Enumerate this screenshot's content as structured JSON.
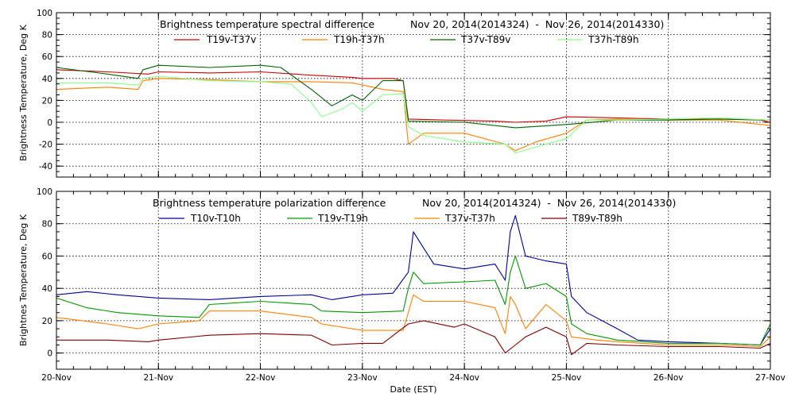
{
  "chart_data": [
    {
      "type": "line",
      "title": "Brightness temperature spectral difference",
      "date_range": "Nov 20, 2014(2014324)  -  Nov 26, 2014(2014330)",
      "ylabel": "Brightness Temperature, Deg K",
      "xlabel": "",
      "ylim": [
        -50,
        100
      ],
      "xlim": [
        0,
        7
      ],
      "yticks": [
        -40,
        -20,
        0,
        20,
        40,
        60,
        80,
        100
      ],
      "grid": true,
      "legend_position": "top",
      "series": [
        {
          "name": "T19v-T37v",
          "color": "#cc0000",
          "points": [
            [
              0,
              48
            ],
            [
              0.5,
              46
            ],
            [
              0.9,
              44
            ],
            [
              1.0,
              46
            ],
            [
              1.5,
              45
            ],
            [
              2.0,
              46
            ],
            [
              2.5,
              43
            ],
            [
              2.9,
              41
            ],
            [
              3.0,
              40
            ],
            [
              3.3,
              40
            ],
            [
              3.4,
              38
            ],
            [
              3.45,
              3
            ],
            [
              3.8,
              2
            ],
            [
              4.3,
              1
            ],
            [
              4.5,
              0
            ],
            [
              4.8,
              1
            ],
            [
              5.0,
              5
            ],
            [
              5.5,
              4
            ],
            [
              6.0,
              3
            ],
            [
              6.5,
              3
            ],
            [
              6.9,
              2
            ],
            [
              7.0,
              0
            ]
          ]
        },
        {
          "name": "T19h-T37h",
          "color": "#ff8000",
          "points": [
            [
              0,
              30
            ],
            [
              0.5,
              32
            ],
            [
              0.8,
              30
            ],
            [
              0.85,
              38
            ],
            [
              1.0,
              40
            ],
            [
              1.5,
              39
            ],
            [
              2.0,
              37
            ],
            [
              2.5,
              37
            ],
            [
              2.9,
              36
            ],
            [
              3.2,
              30
            ],
            [
              3.4,
              28
            ],
            [
              3.45,
              -20
            ],
            [
              3.6,
              -10
            ],
            [
              4.0,
              -10
            ],
            [
              4.4,
              -20
            ],
            [
              4.5,
              -26
            ],
            [
              4.7,
              -18
            ],
            [
              5.0,
              -10
            ],
            [
              5.2,
              2
            ],
            [
              5.5,
              3
            ],
            [
              6.0,
              2
            ],
            [
              6.5,
              2
            ],
            [
              7.0,
              -3
            ]
          ]
        },
        {
          "name": "T37v-T89v",
          "color": "#006400",
          "points": [
            [
              0,
              50
            ],
            [
              0.5,
              44
            ],
            [
              0.8,
              40
            ],
            [
              0.85,
              48
            ],
            [
              1.0,
              52
            ],
            [
              1.5,
              50
            ],
            [
              2.0,
              52
            ],
            [
              2.2,
              50
            ],
            [
              2.5,
              30
            ],
            [
              2.7,
              15
            ],
            [
              2.9,
              25
            ],
            [
              3.0,
              20
            ],
            [
              3.2,
              38
            ],
            [
              3.4,
              38
            ],
            [
              3.45,
              1
            ],
            [
              4.0,
              0
            ],
            [
              4.5,
              -5
            ],
            [
              5.0,
              -2
            ],
            [
              5.5,
              2
            ],
            [
              6.0,
              2
            ],
            [
              6.5,
              3
            ],
            [
              7.0,
              2
            ]
          ]
        },
        {
          "name": "T37h-T89h",
          "color": "#88ff88",
          "points": [
            [
              0,
              36
            ],
            [
              0.5,
              36
            ],
            [
              0.8,
              34
            ],
            [
              0.85,
              40
            ],
            [
              1.0,
              42
            ],
            [
              1.5,
              38
            ],
            [
              2.0,
              37
            ],
            [
              2.3,
              35
            ],
            [
              2.5,
              18
            ],
            [
              2.6,
              5
            ],
            [
              2.8,
              12
            ],
            [
              2.9,
              18
            ],
            [
              3.0,
              10
            ],
            [
              3.2,
              25
            ],
            [
              3.4,
              26
            ],
            [
              3.45,
              -4
            ],
            [
              3.6,
              -12
            ],
            [
              4.0,
              -18
            ],
            [
              4.4,
              -20
            ],
            [
              4.5,
              -28
            ],
            [
              4.8,
              -20
            ],
            [
              5.0,
              -15
            ],
            [
              5.2,
              2
            ],
            [
              5.5,
              2
            ],
            [
              6.0,
              3
            ],
            [
              6.5,
              4
            ],
            [
              7.0,
              2
            ]
          ]
        }
      ]
    },
    {
      "type": "line",
      "title": "Brightness temperature polarization difference",
      "date_range": "Nov 20, 2014(2014324)  -  Nov 26, 2014(2014330)",
      "ylabel": "Brightnes Temperature, Deg K",
      "xlabel": "Date (EST)",
      "ylim": [
        -10,
        100
      ],
      "xlim": [
        0,
        7
      ],
      "yticks": [
        0,
        20,
        40,
        60,
        80,
        100
      ],
      "grid": true,
      "legend_position": "top",
      "categories": [
        "20-Nov",
        "21-Nov",
        "22-Nov",
        "23-Nov",
        "24-Nov",
        "25-Nov",
        "26-Nov",
        "27-Nov"
      ],
      "series": [
        {
          "name": "T10v-T10h",
          "color": "#000099",
          "points": [
            [
              0,
              36
            ],
            [
              0.3,
              38
            ],
            [
              0.6,
              36
            ],
            [
              1.0,
              34
            ],
            [
              1.5,
              33
            ],
            [
              2.0,
              35
            ],
            [
              2.5,
              36
            ],
            [
              2.7,
              33
            ],
            [
              3.0,
              36
            ],
            [
              3.3,
              37
            ],
            [
              3.45,
              50
            ],
            [
              3.5,
              75
            ],
            [
              3.6,
              65
            ],
            [
              3.7,
              55
            ],
            [
              4.0,
              52
            ],
            [
              4.3,
              55
            ],
            [
              4.4,
              45
            ],
            [
              4.45,
              75
            ],
            [
              4.5,
              85
            ],
            [
              4.6,
              60
            ],
            [
              4.8,
              57
            ],
            [
              5.0,
              55
            ],
            [
              5.05,
              35
            ],
            [
              5.2,
              25
            ],
            [
              5.5,
              15
            ],
            [
              5.7,
              8
            ],
            [
              6.0,
              7
            ],
            [
              6.5,
              6
            ],
            [
              6.9,
              5
            ],
            [
              7.0,
              15
            ]
          ]
        },
        {
          "name": "T19v-T19h",
          "color": "#009900",
          "points": [
            [
              0,
              34
            ],
            [
              0.3,
              28
            ],
            [
              0.6,
              25
            ],
            [
              1.0,
              23
            ],
            [
              1.4,
              22
            ],
            [
              1.5,
              30
            ],
            [
              2.0,
              32
            ],
            [
              2.5,
              30
            ],
            [
              2.6,
              26
            ],
            [
              3.0,
              25
            ],
            [
              3.4,
              26
            ],
            [
              3.45,
              40
            ],
            [
              3.5,
              50
            ],
            [
              3.6,
              43
            ],
            [
              4.0,
              44
            ],
            [
              4.3,
              45
            ],
            [
              4.4,
              30
            ],
            [
              4.45,
              50
            ],
            [
              4.5,
              60
            ],
            [
              4.6,
              40
            ],
            [
              4.8,
              43
            ],
            [
              5.0,
              35
            ],
            [
              5.05,
              18
            ],
            [
              5.2,
              12
            ],
            [
              5.5,
              8
            ],
            [
              6.0,
              6
            ],
            [
              6.5,
              6
            ],
            [
              6.9,
              5
            ],
            [
              7.0,
              18
            ]
          ]
        },
        {
          "name": "T37v-T37h",
          "color": "#ff8000",
          "points": [
            [
              0,
              22
            ],
            [
              0.5,
              18
            ],
            [
              0.8,
              15
            ],
            [
              1.0,
              18
            ],
            [
              1.4,
              20
            ],
            [
              1.5,
              26
            ],
            [
              2.0,
              26
            ],
            [
              2.5,
              22
            ],
            [
              2.6,
              18
            ],
            [
              3.0,
              14
            ],
            [
              3.4,
              14
            ],
            [
              3.45,
              25
            ],
            [
              3.5,
              36
            ],
            [
              3.6,
              32
            ],
            [
              4.0,
              32
            ],
            [
              4.3,
              28
            ],
            [
              4.4,
              12
            ],
            [
              4.45,
              35
            ],
            [
              4.5,
              30
            ],
            [
              4.6,
              15
            ],
            [
              4.8,
              30
            ],
            [
              5.0,
              20
            ],
            [
              5.05,
              10
            ],
            [
              5.3,
              8
            ],
            [
              5.5,
              7
            ],
            [
              6.0,
              5
            ],
            [
              6.5,
              5
            ],
            [
              6.9,
              4
            ],
            [
              7.0,
              10
            ]
          ]
        },
        {
          "name": "T89v-T89h",
          "color": "#800000",
          "points": [
            [
              0,
              8
            ],
            [
              0.5,
              8
            ],
            [
              0.9,
              7
            ],
            [
              1.0,
              8
            ],
            [
              1.5,
              11
            ],
            [
              2.0,
              12
            ],
            [
              2.5,
              11
            ],
            [
              2.6,
              8
            ],
            [
              2.7,
              5
            ],
            [
              3.0,
              6
            ],
            [
              3.2,
              6
            ],
            [
              3.45,
              18
            ],
            [
              3.6,
              20
            ],
            [
              3.9,
              16
            ],
            [
              4.0,
              18
            ],
            [
              4.3,
              10
            ],
            [
              4.4,
              0
            ],
            [
              4.5,
              5
            ],
            [
              4.6,
              10
            ],
            [
              4.8,
              16
            ],
            [
              5.0,
              10
            ],
            [
              5.05,
              -1
            ],
            [
              5.2,
              6
            ],
            [
              5.5,
              5
            ],
            [
              6.0,
              4
            ],
            [
              6.5,
              4
            ],
            [
              6.9,
              3
            ],
            [
              7.0,
              6
            ]
          ]
        }
      ]
    }
  ]
}
